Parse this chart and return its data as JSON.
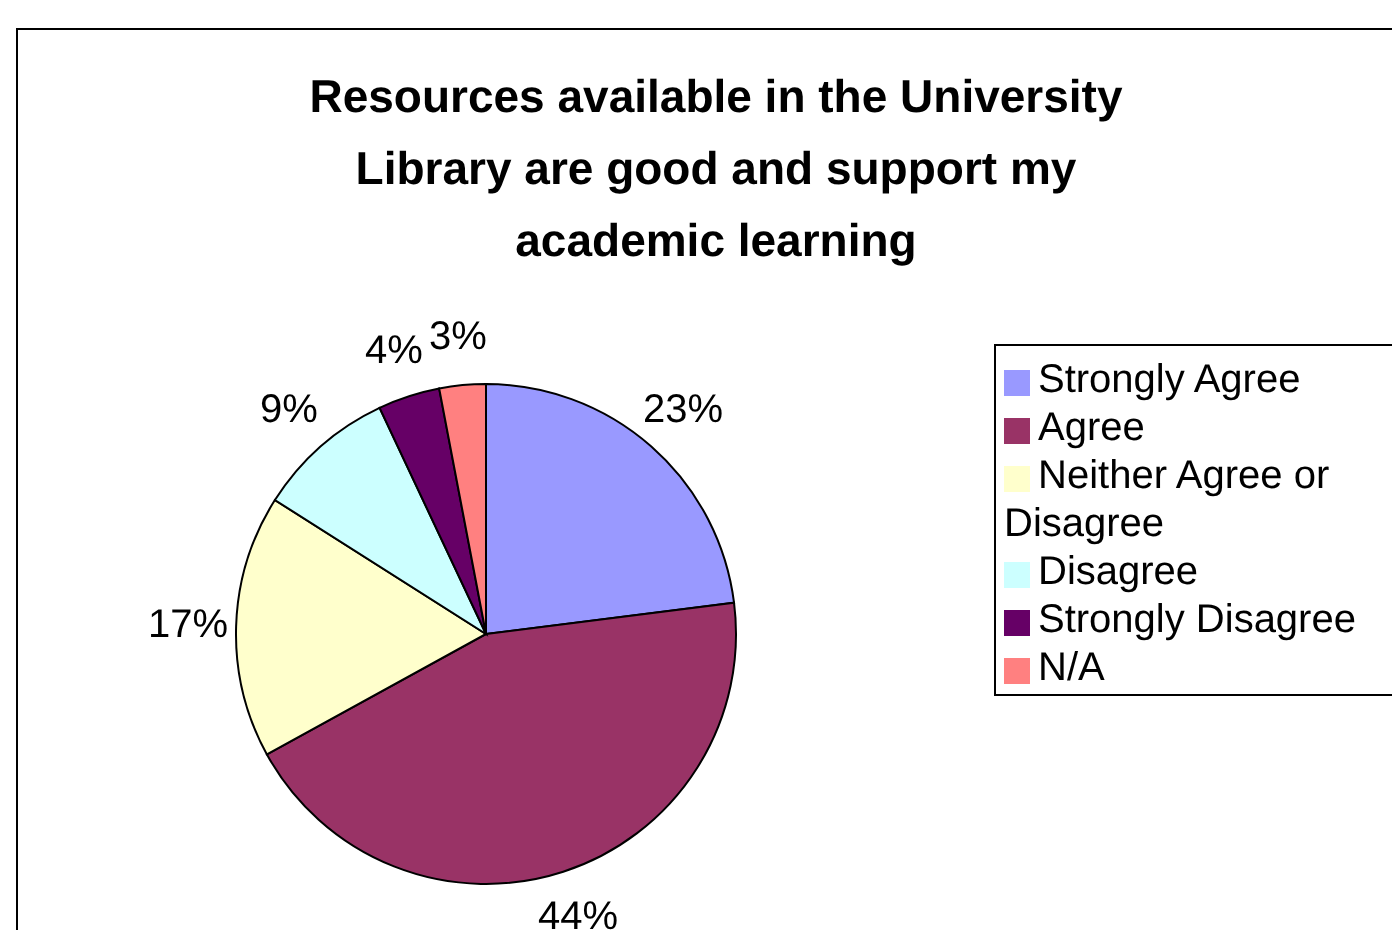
{
  "chart_data": {
    "type": "pie",
    "title": "Resources available in the University Library are good and support my academic learning",
    "categories": [
      "Strongly Agree",
      "Agree",
      "Neither Agree or Disagree",
      "Disagree",
      "Strongly Disagree",
      "N/A"
    ],
    "values": [
      23,
      44,
      17,
      9,
      4,
      3
    ],
    "value_labels": [
      "23%",
      "44%",
      "17%",
      "9%",
      "4%",
      "3%"
    ],
    "colors": [
      "#9999ff",
      "#993366",
      "#ffffcc",
      "#ccffff",
      "#660066",
      "#ff8080"
    ],
    "legend": "right"
  }
}
